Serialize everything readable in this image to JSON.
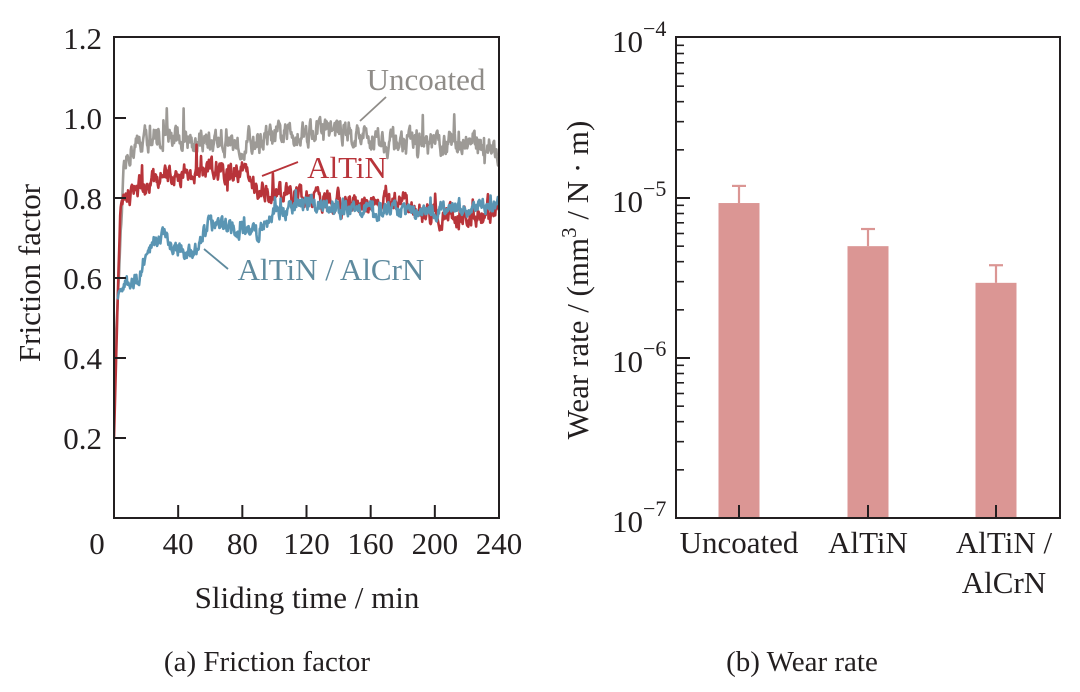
{
  "figure": {
    "caption_a": "(a) Friction factor",
    "caption_b": "(b) Wear rate"
  },
  "chart_data": [
    {
      "type": "line",
      "panel": "a",
      "title": "(a) Friction factor",
      "xlabel": "Sliding time / min",
      "ylabel": "Friction factor",
      "xlim": [
        0,
        240
      ],
      "ylim": [
        0,
        1.2
      ],
      "xticks": [
        0,
        40,
        80,
        120,
        160,
        200,
        240
      ],
      "xtick_labels": [
        "0",
        "40",
        "80",
        "120",
        "160",
        "200",
        "240"
      ],
      "yticks": [
        0.2,
        0.4,
        0.6,
        0.8,
        1.0,
        1.2
      ],
      "ytick_labels": [
        "0.2",
        "0.4",
        "0.6",
        "0.8",
        "1.0",
        "1.2"
      ],
      "grid": false,
      "legend": "inline annotations",
      "series": [
        {
          "name": "Uncoated",
          "color": "#9d9a96",
          "label_color": "#8f8c88",
          "noise": 0.035,
          "x": [
            0,
            3,
            6,
            10,
            20,
            40,
            60,
            80,
            100,
            120,
            140,
            160,
            180,
            200,
            220,
            235,
            240
          ],
          "y": [
            0.35,
            0.6,
            0.85,
            0.92,
            0.95,
            0.95,
            0.94,
            0.94,
            0.95,
            0.97,
            0.97,
            0.95,
            0.94,
            0.93,
            0.94,
            0.93,
            0.9
          ]
        },
        {
          "name": "AlTiN",
          "color": "#b8343a",
          "label_color": "#b8343a",
          "noise": 0.03,
          "x": [
            0,
            2,
            4,
            10,
            20,
            40,
            60,
            80,
            90,
            100,
            120,
            140,
            160,
            180,
            200,
            220,
            240
          ],
          "y": [
            0.2,
            0.5,
            0.78,
            0.81,
            0.84,
            0.86,
            0.87,
            0.87,
            0.82,
            0.81,
            0.8,
            0.79,
            0.79,
            0.78,
            0.76,
            0.75,
            0.76
          ]
        },
        {
          "name": "AlTiN / AlCrN",
          "color": "#5a95b3",
          "label_color": "#5e8a9e",
          "noise": 0.022,
          "x": [
            2,
            5,
            15,
            22,
            30,
            40,
            50,
            60,
            80,
            90,
            100,
            120,
            140,
            160,
            180,
            200,
            220,
            240
          ],
          "y": [
            0.55,
            0.58,
            0.6,
            0.68,
            0.7,
            0.67,
            0.66,
            0.74,
            0.72,
            0.71,
            0.76,
            0.79,
            0.78,
            0.77,
            0.77,
            0.77,
            0.78,
            0.78
          ]
        }
      ]
    },
    {
      "type": "bar",
      "panel": "b",
      "title": "(b) Wear rate",
      "xlabel": "",
      "ylabel": "Wear rate / (mm3 / N · m)",
      "ylabel_parts": {
        "prefix": "Wear rate / (mm",
        "sup": "3",
        "suffix": " / N · m)"
      },
      "yscale": "log",
      "ylim": [
        1e-07,
        0.0001
      ],
      "yticks": [
        1e-07,
        1e-06,
        1e-05,
        0.0001
      ],
      "ytick_labels": [
        {
          "base": "10",
          "exp": "−7"
        },
        {
          "base": "10",
          "exp": "−6"
        },
        {
          "base": "10",
          "exp": "−5"
        },
        {
          "base": "10",
          "exp": "−4"
        }
      ],
      "grid": false,
      "bar_color": "#db9694",
      "categories": [
        "Uncoated",
        "AlTiN",
        "AlTiN / AlCrN"
      ],
      "category_lines": [
        [
          "Uncoated"
        ],
        [
          "AlTiN"
        ],
        [
          "AlTiN /",
          "AlCrN"
        ]
      ],
      "values": [
        9.3e-06,
        5e-06,
        2.95e-06
      ],
      "error_upper": [
        1.19e-05,
        6.4e-06,
        3.8e-06
      ]
    }
  ]
}
